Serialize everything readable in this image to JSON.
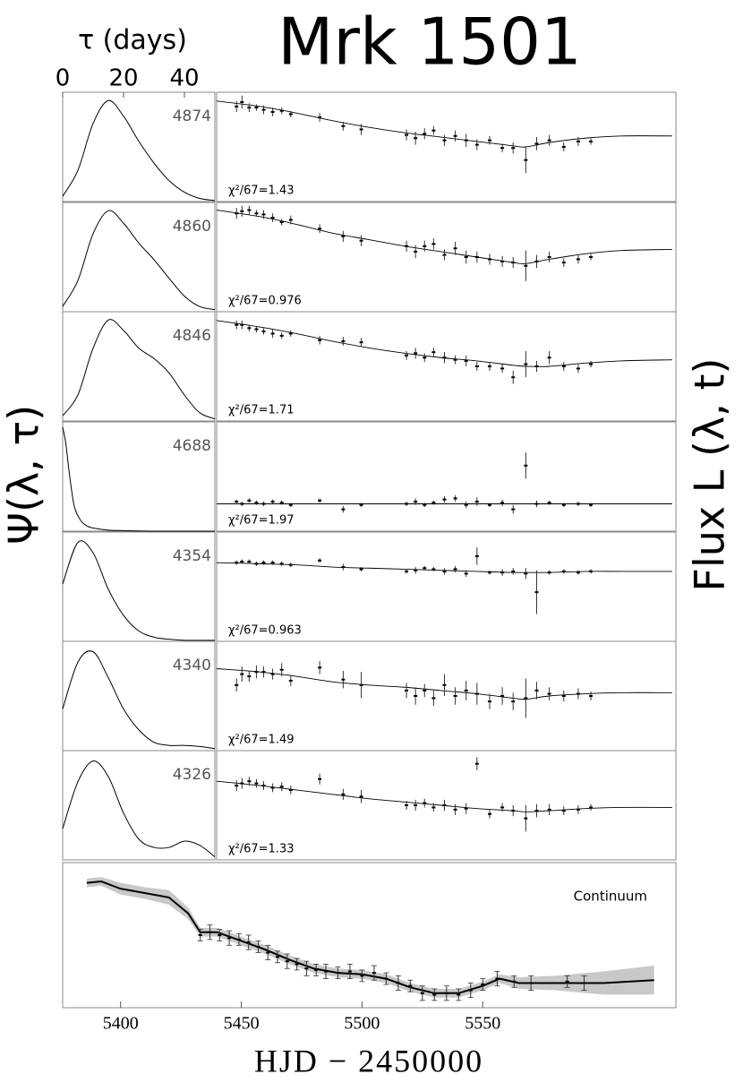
{
  "title": "Mrk 1501",
  "ylabel_left": "Ψ(λ, τ)",
  "ylabel_right": "Flux L (λ, t)",
  "chart_data": [
    {
      "type": "line",
      "label": "4874",
      "xlabel": "τ (days)",
      "xlim": [
        0,
        50
      ],
      "ylim": [
        0,
        1.05
      ],
      "xticks": [
        0,
        20,
        40
      ],
      "x": [
        0,
        5,
        10,
        15,
        20,
        25,
        30,
        35,
        40,
        45,
        50
      ],
      "values": [
        0.05,
        0.3,
        0.75,
        0.97,
        0.82,
        0.58,
        0.37,
        0.2,
        0.09,
        0.03,
        0.01
      ]
    },
    {
      "type": "line",
      "label": "4860",
      "xlim": [
        0,
        50
      ],
      "ylim": [
        0,
        1.05
      ],
      "x": [
        0,
        5,
        10,
        15,
        20,
        25,
        30,
        35,
        40,
        45,
        50
      ],
      "values": [
        0.05,
        0.3,
        0.75,
        0.97,
        0.85,
        0.66,
        0.5,
        0.32,
        0.15,
        0.05,
        0.02
      ]
    },
    {
      "type": "line",
      "label": "4846",
      "xlim": [
        0,
        50
      ],
      "ylim": [
        0,
        1.05
      ],
      "x": [
        0,
        5,
        10,
        15,
        20,
        25,
        30,
        35,
        40,
        45,
        50
      ],
      "values": [
        0.05,
        0.25,
        0.7,
        0.97,
        0.87,
        0.7,
        0.6,
        0.46,
        0.25,
        0.08,
        0.02
      ]
    },
    {
      "type": "line",
      "label": "4688",
      "xlim": [
        0,
        50
      ],
      "ylim": [
        0,
        1.05
      ],
      "x": [
        0,
        1,
        2,
        3,
        4,
        6,
        8,
        10,
        15,
        20,
        30,
        40,
        50
      ],
      "values": [
        1,
        0.85,
        0.6,
        0.38,
        0.22,
        0.1,
        0.05,
        0.03,
        0.01,
        0.005,
        0,
        0,
        0
      ]
    },
    {
      "type": "line",
      "label": "4354",
      "xlim": [
        0,
        50
      ],
      "ylim": [
        0,
        1.05
      ],
      "x": [
        0,
        5,
        10,
        15,
        20,
        25,
        30,
        35,
        40,
        45,
        50
      ],
      "values": [
        0.55,
        0.95,
        0.85,
        0.5,
        0.25,
        0.1,
        0.04,
        0.02,
        0.01,
        0.01,
        0.01
      ]
    },
    {
      "type": "line",
      "label": "4340",
      "xlim": [
        0,
        50
      ],
      "ylim": [
        0,
        1.05
      ],
      "x": [
        0,
        5,
        10,
        15,
        20,
        25,
        30,
        35,
        40,
        45,
        50
      ],
      "values": [
        0.4,
        0.85,
        0.95,
        0.7,
        0.4,
        0.2,
        0.08,
        0.05,
        0.05,
        0.04,
        0.02
      ]
    },
    {
      "type": "line",
      "label": "4326",
      "xlim": [
        0,
        50
      ],
      "ylim": [
        0,
        1.05
      ],
      "x": [
        0,
        5,
        10,
        15,
        20,
        25,
        30,
        35,
        40,
        45,
        50
      ],
      "values": [
        0.3,
        0.75,
        0.95,
        0.8,
        0.45,
        0.2,
        0.12,
        0.12,
        0.18,
        0.14,
        0.03
      ]
    },
    {
      "type": "scatter",
      "annotation": "χ²/67=1.43",
      "xlim": [
        5376,
        5630
      ],
      "ylim": [
        0,
        1
      ],
      "x": [
        5387,
        5390,
        5394,
        5398,
        5402,
        5407,
        5412,
        5417,
        5433,
        5446,
        5456,
        5481,
        5486,
        5491,
        5496,
        5502,
        5508,
        5514,
        5520,
        5527,
        5534,
        5540,
        5547,
        5553,
        5560,
        5568,
        5576,
        5583
      ],
      "values": [
        0.87,
        0.91,
        0.86,
        0.86,
        0.84,
        0.82,
        0.83,
        0.8,
        0.77,
        0.69,
        0.66,
        0.61,
        0.58,
        0.62,
        0.65,
        0.56,
        0.6,
        0.56,
        0.52,
        0.56,
        0.49,
        0.49,
        0.38,
        0.53,
        0.56,
        0.5,
        0.55,
        0.55
      ],
      "errors": [
        0.05,
        0.06,
        0.04,
        0.03,
        0.04,
        0.04,
        0.03,
        0.03,
        0.04,
        0.04,
        0.05,
        0.05,
        0.06,
        0.05,
        0.04,
        0.05,
        0.05,
        0.06,
        0.05,
        0.04,
        0.04,
        0.05,
        0.12,
        0.06,
        0.05,
        0.04,
        0.04,
        0.03
      ],
      "model_x": [
        5376,
        5400,
        5420,
        5440,
        5460,
        5480,
        5500,
        5520,
        5540,
        5547,
        5560,
        5580,
        5600,
        5628
      ],
      "model_values": [
        0.92,
        0.87,
        0.81,
        0.74,
        0.68,
        0.63,
        0.59,
        0.55,
        0.51,
        0.5,
        0.54,
        0.58,
        0.6,
        0.6
      ]
    },
    {
      "type": "scatter",
      "annotation": "χ²/67=0.976",
      "xlim": [
        5376,
        5630
      ],
      "ylim": [
        0,
        1
      ],
      "x": [
        5387,
        5390,
        5394,
        5398,
        5402,
        5407,
        5412,
        5417,
        5433,
        5446,
        5456,
        5481,
        5486,
        5491,
        5496,
        5502,
        5508,
        5514,
        5520,
        5527,
        5534,
        5540,
        5547,
        5553,
        5560,
        5568,
        5576,
        5583
      ],
      "values": [
        0.9,
        0.92,
        0.93,
        0.9,
        0.89,
        0.86,
        0.82,
        0.84,
        0.76,
        0.69,
        0.65,
        0.6,
        0.55,
        0.6,
        0.62,
        0.52,
        0.58,
        0.5,
        0.5,
        0.48,
        0.46,
        0.45,
        0.42,
        0.46,
        0.5,
        0.45,
        0.48,
        0.5
      ],
      "errors": [
        0.05,
        0.05,
        0.04,
        0.03,
        0.04,
        0.04,
        0.03,
        0.04,
        0.04,
        0.05,
        0.05,
        0.05,
        0.06,
        0.05,
        0.05,
        0.05,
        0.06,
        0.06,
        0.05,
        0.05,
        0.05,
        0.05,
        0.14,
        0.06,
        0.05,
        0.04,
        0.04,
        0.03
      ],
      "model_x": [
        5376,
        5400,
        5420,
        5440,
        5460,
        5480,
        5500,
        5520,
        5540,
        5547,
        5560,
        5580,
        5600,
        5628
      ],
      "model_values": [
        0.93,
        0.87,
        0.8,
        0.72,
        0.66,
        0.6,
        0.55,
        0.5,
        0.45,
        0.44,
        0.48,
        0.53,
        0.56,
        0.57
      ]
    },
    {
      "type": "scatter",
      "annotation": "χ²/67=1.71",
      "xlim": [
        5376,
        5630
      ],
      "ylim": [
        0,
        1
      ],
      "x": [
        5387,
        5390,
        5394,
        5398,
        5402,
        5407,
        5412,
        5417,
        5433,
        5446,
        5456,
        5481,
        5486,
        5491,
        5496,
        5502,
        5508,
        5514,
        5520,
        5527,
        5534,
        5540,
        5547,
        5553,
        5560,
        5568,
        5576,
        5583
      ],
      "values": [
        0.88,
        0.88,
        0.85,
        0.84,
        0.82,
        0.8,
        0.78,
        0.8,
        0.74,
        0.73,
        0.72,
        0.6,
        0.62,
        0.58,
        0.63,
        0.58,
        0.56,
        0.55,
        0.5,
        0.5,
        0.48,
        0.4,
        0.52,
        0.5,
        0.58,
        0.5,
        0.48,
        0.52
      ],
      "errors": [
        0.04,
        0.04,
        0.03,
        0.03,
        0.03,
        0.04,
        0.03,
        0.03,
        0.04,
        0.04,
        0.04,
        0.04,
        0.05,
        0.04,
        0.04,
        0.05,
        0.04,
        0.05,
        0.04,
        0.04,
        0.04,
        0.06,
        0.12,
        0.05,
        0.06,
        0.04,
        0.04,
        0.03
      ],
      "model_x": [
        5376,
        5400,
        5420,
        5440,
        5460,
        5480,
        5500,
        5520,
        5540,
        5547,
        5560,
        5580,
        5600,
        5628
      ],
      "model_values": [
        0.92,
        0.86,
        0.8,
        0.73,
        0.67,
        0.62,
        0.58,
        0.55,
        0.51,
        0.5,
        0.5,
        0.53,
        0.55,
        0.56
      ]
    },
    {
      "type": "scatter",
      "annotation": "χ²/67=1.97",
      "xlim": [
        5376,
        5630
      ],
      "ylim": [
        0,
        1
      ],
      "x": [
        5387,
        5390,
        5394,
        5398,
        5402,
        5407,
        5412,
        5417,
        5433,
        5446,
        5456,
        5481,
        5486,
        5491,
        5496,
        5502,
        5508,
        5514,
        5520,
        5527,
        5534,
        5540,
        5547,
        5553,
        5560,
        5568,
        5576,
        5583
      ],
      "values": [
        0.27,
        0.25,
        0.28,
        0.26,
        0.25,
        0.27,
        0.26,
        0.24,
        0.28,
        0.2,
        0.24,
        0.25,
        0.27,
        0.24,
        0.26,
        0.29,
        0.3,
        0.24,
        0.27,
        0.24,
        0.26,
        0.2,
        0.6,
        0.25,
        0.26,
        0.24,
        0.25,
        0.24
      ],
      "errors": [
        0.02,
        0.02,
        0.02,
        0.02,
        0.02,
        0.02,
        0.02,
        0.02,
        0.02,
        0.03,
        0.02,
        0.02,
        0.03,
        0.02,
        0.02,
        0.03,
        0.03,
        0.03,
        0.04,
        0.02,
        0.03,
        0.04,
        0.12,
        0.03,
        0.02,
        0.02,
        0.02,
        0.02
      ],
      "model_x": [
        5376,
        5400,
        5420,
        5440,
        5460,
        5480,
        5500,
        5520,
        5540,
        5547,
        5560,
        5580,
        5600,
        5628
      ],
      "model_values": [
        0.25,
        0.25,
        0.25,
        0.25,
        0.25,
        0.25,
        0.25,
        0.25,
        0.25,
        0.25,
        0.25,
        0.25,
        0.25,
        0.25
      ]
    },
    {
      "type": "scatter",
      "annotation": "χ²/67=0.963",
      "xlim": [
        5376,
        5630
      ],
      "ylim": [
        0,
        1
      ],
      "x": [
        5387,
        5390,
        5394,
        5398,
        5402,
        5407,
        5412,
        5417,
        5433,
        5446,
        5456,
        5481,
        5486,
        5491,
        5496,
        5502,
        5508,
        5514,
        5520,
        5527,
        5534,
        5540,
        5547,
        5553,
        5560,
        5568,
        5576,
        5583
      ],
      "values": [
        0.72,
        0.73,
        0.73,
        0.71,
        0.72,
        0.72,
        0.71,
        0.7,
        0.74,
        0.68,
        0.66,
        0.64,
        0.65,
        0.67,
        0.66,
        0.64,
        0.66,
        0.62,
        0.78,
        0.63,
        0.63,
        0.64,
        0.62,
        0.45,
        0.63,
        0.64,
        0.63,
        0.64
      ],
      "errors": [
        0.02,
        0.02,
        0.02,
        0.02,
        0.02,
        0.02,
        0.02,
        0.02,
        0.02,
        0.03,
        0.02,
        0.02,
        0.03,
        0.02,
        0.02,
        0.03,
        0.03,
        0.03,
        0.08,
        0.02,
        0.03,
        0.03,
        0.05,
        0.2,
        0.02,
        0.02,
        0.02,
        0.02
      ],
      "model_x": [
        5376,
        5400,
        5420,
        5440,
        5460,
        5480,
        5500,
        5520,
        5540,
        5547,
        5560,
        5580,
        5600,
        5628
      ],
      "model_values": [
        0.72,
        0.71,
        0.7,
        0.68,
        0.67,
        0.66,
        0.65,
        0.64,
        0.63,
        0.63,
        0.63,
        0.64,
        0.64,
        0.64
      ]
    },
    {
      "type": "scatter",
      "annotation": "χ²/67=1.49",
      "xlim": [
        5376,
        5630
      ],
      "ylim": [
        0,
        1
      ],
      "x": [
        5387,
        5390,
        5394,
        5398,
        5402,
        5407,
        5412,
        5417,
        5433,
        5446,
        5456,
        5481,
        5486,
        5491,
        5496,
        5502,
        5508,
        5514,
        5520,
        5527,
        5534,
        5540,
        5547,
        5553,
        5560,
        5568,
        5576,
        5583
      ],
      "values": [
        0.6,
        0.7,
        0.68,
        0.72,
        0.72,
        0.7,
        0.74,
        0.64,
        0.76,
        0.65,
        0.6,
        0.55,
        0.5,
        0.55,
        0.48,
        0.6,
        0.5,
        0.55,
        0.52,
        0.45,
        0.5,
        0.45,
        0.48,
        0.55,
        0.52,
        0.5,
        0.52,
        0.5
      ],
      "errors": [
        0.06,
        0.07,
        0.05,
        0.06,
        0.05,
        0.05,
        0.06,
        0.05,
        0.06,
        0.08,
        0.12,
        0.07,
        0.08,
        0.06,
        0.07,
        0.1,
        0.08,
        0.09,
        0.1,
        0.07,
        0.08,
        0.08,
        0.18,
        0.08,
        0.06,
        0.05,
        0.05,
        0.04
      ],
      "model_x": [
        5376,
        5400,
        5420,
        5440,
        5460,
        5480,
        5500,
        5520,
        5540,
        5547,
        5560,
        5580,
        5600,
        5628
      ],
      "model_values": [
        0.75,
        0.72,
        0.68,
        0.63,
        0.6,
        0.58,
        0.55,
        0.52,
        0.48,
        0.47,
        0.5,
        0.52,
        0.53,
        0.53
      ]
    },
    {
      "type": "scatter",
      "annotation": "χ²/67=1.33",
      "xlim": [
        5376,
        5630
      ],
      "ylim": [
        0,
        1
      ],
      "x": [
        5387,
        5390,
        5394,
        5398,
        5402,
        5407,
        5412,
        5417,
        5433,
        5446,
        5456,
        5481,
        5486,
        5491,
        5496,
        5502,
        5508,
        5514,
        5520,
        5527,
        5534,
        5540,
        5547,
        5553,
        5560,
        5568,
        5576,
        5583
      ],
      "values": [
        0.68,
        0.7,
        0.72,
        0.7,
        0.68,
        0.66,
        0.67,
        0.64,
        0.74,
        0.6,
        0.58,
        0.5,
        0.5,
        0.52,
        0.48,
        0.5,
        0.46,
        0.47,
        0.88,
        0.42,
        0.48,
        0.45,
        0.38,
        0.45,
        0.46,
        0.45,
        0.46,
        0.48
      ],
      "errors": [
        0.05,
        0.05,
        0.04,
        0.04,
        0.04,
        0.04,
        0.04,
        0.04,
        0.05,
        0.05,
        0.06,
        0.04,
        0.05,
        0.04,
        0.04,
        0.05,
        0.05,
        0.05,
        0.06,
        0.04,
        0.04,
        0.05,
        0.12,
        0.06,
        0.05,
        0.04,
        0.04,
        0.03
      ],
      "model_x": [
        5376,
        5400,
        5420,
        5440,
        5460,
        5480,
        5500,
        5520,
        5540,
        5547,
        5560,
        5580,
        5600,
        5628
      ],
      "model_values": [
        0.72,
        0.68,
        0.64,
        0.6,
        0.56,
        0.53,
        0.5,
        0.47,
        0.45,
        0.44,
        0.45,
        0.47,
        0.48,
        0.48
      ]
    },
    {
      "type": "scatter",
      "annotation": "Continuum",
      "xlabel": "HJD − 2450000",
      "xlim": [
        5376,
        5630
      ],
      "ylim": [
        0,
        1
      ],
      "xticks": [
        5400,
        5450,
        5500,
        5550
      ],
      "x": [
        5433,
        5437,
        5441,
        5445,
        5449,
        5453,
        5457,
        5461,
        5465,
        5469,
        5473,
        5477,
        5481,
        5485,
        5490,
        5495,
        5500,
        5505,
        5510,
        5515,
        5520,
        5525,
        5530,
        5535,
        5540,
        5545,
        5550,
        5556,
        5563,
        5570,
        5585,
        5592
      ],
      "values": [
        0.5,
        0.52,
        0.5,
        0.48,
        0.47,
        0.45,
        0.42,
        0.38,
        0.35,
        0.32,
        0.3,
        0.27,
        0.26,
        0.25,
        0.24,
        0.25,
        0.22,
        0.24,
        0.2,
        0.17,
        0.15,
        0.1,
        0.09,
        0.1,
        0.09,
        0.12,
        0.16,
        0.2,
        0.18,
        0.17,
        0.18,
        0.17
      ],
      "errors": [
        0.04,
        0.05,
        0.04,
        0.05,
        0.04,
        0.05,
        0.04,
        0.05,
        0.04,
        0.05,
        0.04,
        0.05,
        0.04,
        0.05,
        0.04,
        0.05,
        0.04,
        0.05,
        0.04,
        0.05,
        0.04,
        0.05,
        0.04,
        0.05,
        0.04,
        0.05,
        0.04,
        0.05,
        0.04,
        0.05,
        0.04,
        0.05
      ],
      "model_x": [
        5386,
        5392,
        5400,
        5410,
        5420,
        5428,
        5433,
        5440,
        5450,
        5460,
        5470,
        5480,
        5490,
        5500,
        5510,
        5520,
        5530,
        5540,
        5550,
        5557,
        5565,
        5580,
        5600,
        5621
      ],
      "model_values": [
        0.86,
        0.87,
        0.82,
        0.79,
        0.76,
        0.65,
        0.52,
        0.52,
        0.46,
        0.4,
        0.33,
        0.27,
        0.24,
        0.23,
        0.2,
        0.14,
        0.1,
        0.1,
        0.15,
        0.2,
        0.17,
        0.17,
        0.17,
        0.19
      ],
      "band_upper": [
        0.89,
        0.9,
        0.86,
        0.83,
        0.81,
        0.69,
        0.55,
        0.55,
        0.49,
        0.43,
        0.36,
        0.3,
        0.27,
        0.26,
        0.23,
        0.17,
        0.13,
        0.13,
        0.18,
        0.23,
        0.21,
        0.22,
        0.25,
        0.29
      ],
      "band_lower": [
        0.83,
        0.84,
        0.78,
        0.75,
        0.71,
        0.61,
        0.49,
        0.49,
        0.43,
        0.37,
        0.3,
        0.24,
        0.21,
        0.2,
        0.17,
        0.11,
        0.07,
        0.07,
        0.12,
        0.17,
        0.13,
        0.12,
        0.09,
        0.09
      ]
    }
  ]
}
